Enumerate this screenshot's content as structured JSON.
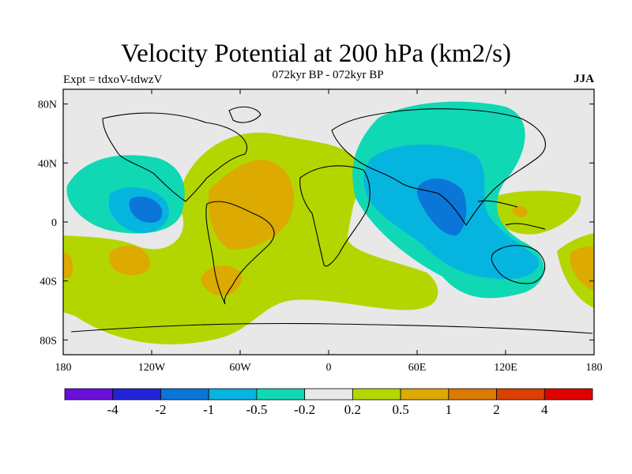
{
  "header": {
    "title": "Velocity Potential at 200 hPa (km2/s)",
    "experiment": "Expt = tdxoV-tdwzV",
    "period": "072kyr BP - 072kyr BP",
    "season": "JJA"
  },
  "axes": {
    "lat_ticks": [
      {
        "value": 80,
        "label": "80N"
      },
      {
        "value": 40,
        "label": "40N"
      },
      {
        "value": 0,
        "label": "0"
      },
      {
        "value": -40,
        "label": "40S"
      },
      {
        "value": -80,
        "label": "80S"
      }
    ],
    "lon_ticks": [
      {
        "value": -180,
        "label": "180"
      },
      {
        "value": -120,
        "label": "120W"
      },
      {
        "value": -60,
        "label": "60W"
      },
      {
        "value": 0,
        "label": "0"
      },
      {
        "value": 60,
        "label": "60E"
      },
      {
        "value": 120,
        "label": "120E"
      },
      {
        "value": 180,
        "label": "180"
      }
    ]
  },
  "colorbar": {
    "colors": [
      "#6a0fd8",
      "#2323d6",
      "#0a76d8",
      "#06b4e0",
      "#10d8b4",
      "#e8e8e8",
      "#b4d600",
      "#dcaa00",
      "#dc7a00",
      "#dc4000",
      "#e00000"
    ],
    "labels": [
      "-4",
      "-2",
      "-1",
      "-0.5",
      "-0.2",
      "0.2",
      "0.5",
      "1",
      "2",
      "4"
    ]
  },
  "map_colors": {
    "background": "#e8e8e8",
    "green": "#b4d600",
    "orange": "#dcaa00",
    "teal": "#10d8b4",
    "cyan": "#06b4e0",
    "blue": "#0a76d8"
  }
}
